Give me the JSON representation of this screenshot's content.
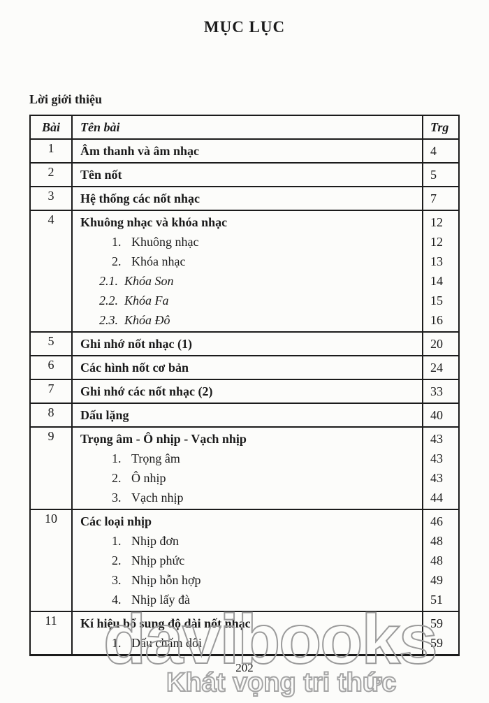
{
  "page": {
    "title": "MỤC LỤC",
    "intro_heading": "Lời giới thiệu",
    "folio": "202",
    "colors": {
      "text": "#1b1b1b",
      "border": "#1b1b1b",
      "background": "#fcfcfa",
      "watermark": "#9b9b9b"
    }
  },
  "watermark": {
    "brand": "davibooks",
    "slogan": "Khát vọng tri thức"
  },
  "table": {
    "headers": {
      "no": "Bài",
      "title": "Tên bài",
      "page": "Trg"
    },
    "rows": [
      {
        "no": "1",
        "lines": [
          {
            "m": "",
            "t": "Âm thanh và âm nhạc",
            "s": "main",
            "p": "4"
          }
        ]
      },
      {
        "no": "2",
        "lines": [
          {
            "m": "",
            "t": "Tên nốt",
            "s": "main",
            "p": "5"
          }
        ]
      },
      {
        "no": "3",
        "lines": [
          {
            "m": "",
            "t": "Hệ thống các nốt nhạc",
            "s": "main",
            "p": "7"
          }
        ]
      },
      {
        "no": "4",
        "lines": [
          {
            "m": "",
            "t": "Khuông nhạc và khóa nhạc",
            "s": "main",
            "p": "12"
          },
          {
            "m": "1.",
            "t": "Khuông nhạc",
            "s": "sub",
            "p": "12"
          },
          {
            "m": "2.",
            "t": "Khóa nhạc",
            "s": "sub",
            "p": "13"
          },
          {
            "m": "2.1.",
            "t": "Khóa Son",
            "s": "subi",
            "p": "14"
          },
          {
            "m": "2.2.",
            "t": "Khóa Fa",
            "s": "subi",
            "p": "15"
          },
          {
            "m": "2.3.",
            "t": "Khóa Đô",
            "s": "subi",
            "p": "16"
          }
        ]
      },
      {
        "no": "5",
        "lines": [
          {
            "m": "",
            "t": "Ghi nhớ nốt nhạc (1)",
            "s": "main",
            "p": "20"
          }
        ]
      },
      {
        "no": "6",
        "lines": [
          {
            "m": "",
            "t": "Các hình nốt cơ bản",
            "s": "main",
            "p": "24"
          }
        ]
      },
      {
        "no": "7",
        "lines": [
          {
            "m": "",
            "t": "Ghi nhớ các nốt nhạc (2)",
            "s": "main",
            "p": "33"
          }
        ]
      },
      {
        "no": "8",
        "lines": [
          {
            "m": "",
            "t": "Dấu lặng",
            "s": "main",
            "p": "40"
          }
        ]
      },
      {
        "no": "9",
        "lines": [
          {
            "m": "",
            "t": "Trọng âm - Ô nhịp - Vạch nhịp",
            "s": "main",
            "p": "43"
          },
          {
            "m": "1.",
            "t": "Trọng âm",
            "s": "sub",
            "p": "43"
          },
          {
            "m": "2.",
            "t": "Ô nhịp",
            "s": "sub",
            "p": "43"
          },
          {
            "m": "3.",
            "t": "Vạch nhịp",
            "s": "sub",
            "p": "44"
          }
        ]
      },
      {
        "no": "10",
        "lines": [
          {
            "m": "",
            "t": "Các loại nhịp",
            "s": "main",
            "p": "46"
          },
          {
            "m": "1.",
            "t": "Nhịp đơn",
            "s": "sub",
            "p": "48"
          },
          {
            "m": "2.",
            "t": "Nhịp phức",
            "s": "sub",
            "p": "48"
          },
          {
            "m": "3.",
            "t": "Nhịp hỗn hợp",
            "s": "sub",
            "p": "49"
          },
          {
            "m": "4.",
            "t": "Nhịp lấy đà",
            "s": "sub",
            "p": "51"
          }
        ]
      },
      {
        "no": "11",
        "lines": [
          {
            "m": "",
            "t": "Kí hiệu bổ sung độ dài nốt nhạc",
            "s": "main",
            "p": "59"
          },
          {
            "m": "1.",
            "t": "Dấu chấm dôi",
            "s": "sub",
            "p": "59"
          }
        ]
      }
    ]
  }
}
